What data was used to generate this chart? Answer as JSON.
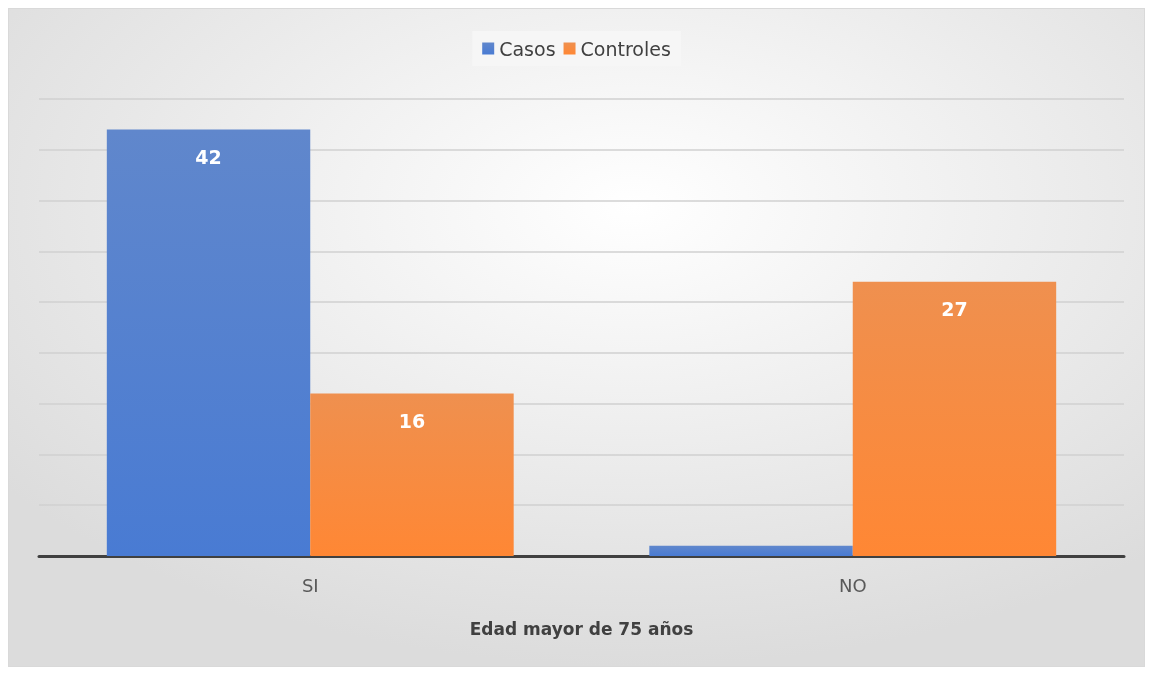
{
  "chart_data": {
    "type": "bar",
    "xlabel": "Edad mayor de 75 años",
    "categories": [
      "SI",
      "NO"
    ],
    "series": [
      {
        "name": "Casos",
        "color": "#4472c4",
        "values": [
          42,
          1
        ],
        "value_labels": [
          "42",
          null
        ]
      },
      {
        "name": "Controles",
        "color": "#ed7d31",
        "values": [
          16,
          27
        ],
        "value_labels": [
          "16",
          "27"
        ]
      }
    ],
    "ylim": [
      0,
      45
    ],
    "yticks": [
      {
        "value": 0,
        "label": null
      },
      {
        "value": 5,
        "label": null
      },
      {
        "value": 10,
        "label": null
      },
      {
        "value": 15,
        "label": null
      },
      {
        "value": 20,
        "label": null
      },
      {
        "value": 25,
        "label": null
      },
      {
        "value": 30,
        "label": null
      },
      {
        "value": 35,
        "label": null
      },
      {
        "value": 40,
        "label": null
      },
      {
        "value": 45,
        "label": null
      }
    ],
    "tick_labels": "x",
    "grid": "y",
    "legend": "top"
  }
}
